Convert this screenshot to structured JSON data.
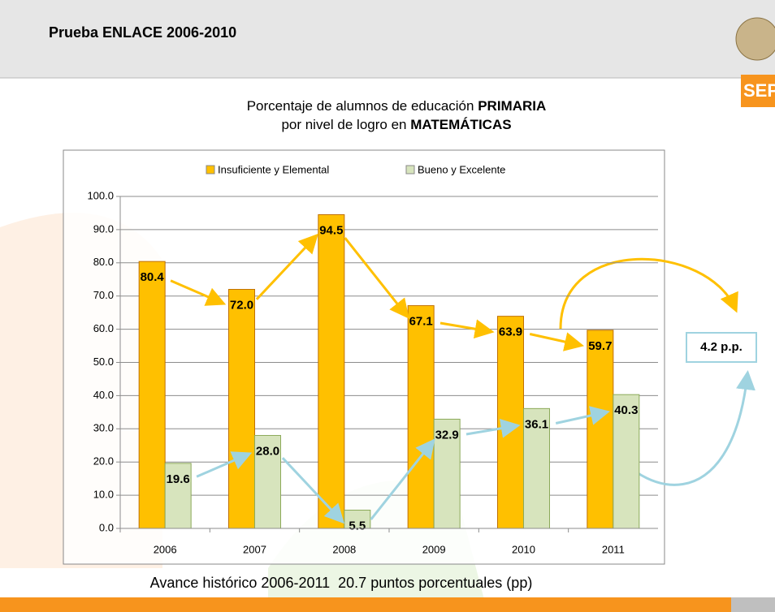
{
  "header": {
    "title": "Prueba ENLACE 2006-2010",
    "logo_text": "SEP"
  },
  "chart_data": {
    "type": "bar",
    "title_lines": [
      {
        "regular": "Porcentaje de alumnos de educación",
        "bold": "PRIMARIA"
      },
      {
        "regular": "por nivel de logro en",
        "bold": "MATEMÁTICAS"
      }
    ],
    "categories": [
      "2006",
      "2007",
      "2008",
      "2009",
      "2010",
      "2011"
    ],
    "series": [
      {
        "name": "Insuficiente y Elemental",
        "color": "#ffc000",
        "values": [
          80.4,
          72.0,
          94.5,
          67.1,
          63.9,
          59.7
        ],
        "value_labels": [
          "80.4",
          "72.0",
          "94.5",
          "67.1",
          "63.9",
          "59.7"
        ]
      },
      {
        "name": "Bueno y Excelente",
        "color": "#d7e4bd",
        "values": [
          19.6,
          28.0,
          5.5,
          32.9,
          36.1,
          40.3
        ],
        "value_labels": [
          "19.6",
          "28.0",
          "5.5",
          "32.9",
          "36.1",
          "40.3"
        ]
      }
    ],
    "ylim": [
      0,
      100
    ],
    "yticks": [
      {
        "value": 0,
        "label": "0.0"
      },
      {
        "value": 10,
        "label": "10.0"
      },
      {
        "value": 20,
        "label": "20.0"
      },
      {
        "value": 30,
        "label": "30.0"
      },
      {
        "value": 40,
        "label": "40.0"
      },
      {
        "value": 50,
        "label": "50.0"
      },
      {
        "value": 60,
        "label": "60.0"
      },
      {
        "value": 70,
        "label": "70.0"
      },
      {
        "value": 80,
        "label": "80.0"
      },
      {
        "value": 90,
        "label": "90.0"
      },
      {
        "value": 100,
        "label": "100.0"
      }
    ],
    "grid": true,
    "annotation": "4.2 p.p.",
    "footnote": "Avance histórico 2006-2011  20.7 puntos porcentuales (pp)"
  }
}
